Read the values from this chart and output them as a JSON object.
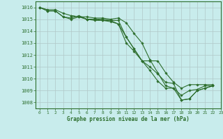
{
  "title": "Graphe pression niveau de la mer (hPa)",
  "background_color": "#c8ecec",
  "grid_color": "#b0c8c8",
  "line_color": "#2d6e2d",
  "xlim": [
    -0.5,
    23
  ],
  "ylim": [
    1007.5,
    1016.5
  ],
  "yticks": [
    1008,
    1009,
    1010,
    1011,
    1012,
    1013,
    1014,
    1015,
    1016
  ],
  "xticks": [
    0,
    1,
    2,
    3,
    4,
    5,
    6,
    7,
    8,
    9,
    10,
    11,
    12,
    13,
    14,
    15,
    16,
    17,
    18,
    19,
    20,
    21,
    22,
    23
  ],
  "series": [
    [
      1016.0,
      1015.8,
      1015.8,
      1015.5,
      1015.3,
      1015.2,
      1015.2,
      1015.1,
      1015.1,
      1015.0,
      1015.1,
      1014.7,
      1013.8,
      1013.0,
      1011.6,
      1010.5,
      1009.4,
      1009.2,
      1008.6,
      1009.0,
      1009.1,
      1009.4,
      1009.4,
      null
    ],
    [
      1016.0,
      1015.7,
      1015.7,
      1015.2,
      1015.1,
      1015.3,
      1015.0,
      1015.0,
      1015.0,
      1014.9,
      1014.9,
      1013.5,
      1012.5,
      1011.5,
      1011.0,
      1010.4,
      1009.7,
      1009.6,
      1008.2,
      1008.3,
      1009.0,
      1009.2,
      1009.4,
      null
    ],
    [
      1016.0,
      1015.7,
      1015.7,
      1015.2,
      1015.0,
      1015.2,
      1015.0,
      1014.9,
      1014.9,
      1014.9,
      1014.6,
      1013.0,
      1012.3,
      1011.5,
      1010.7,
      1009.8,
      1009.2,
      1009.2,
      1008.2,
      1008.3,
      1009.0,
      1009.2,
      1009.4,
      null
    ],
    [
      1016.0,
      null,
      null,
      null,
      1015.3,
      1015.2,
      1015.0,
      1015.0,
      1014.9,
      1014.8,
      1014.6,
      1013.5,
      1012.5,
      1011.5,
      1011.5,
      1011.5,
      1010.5,
      1009.7,
      1009.2,
      1009.5,
      1009.5,
      1009.5,
      1009.5,
      null
    ]
  ]
}
